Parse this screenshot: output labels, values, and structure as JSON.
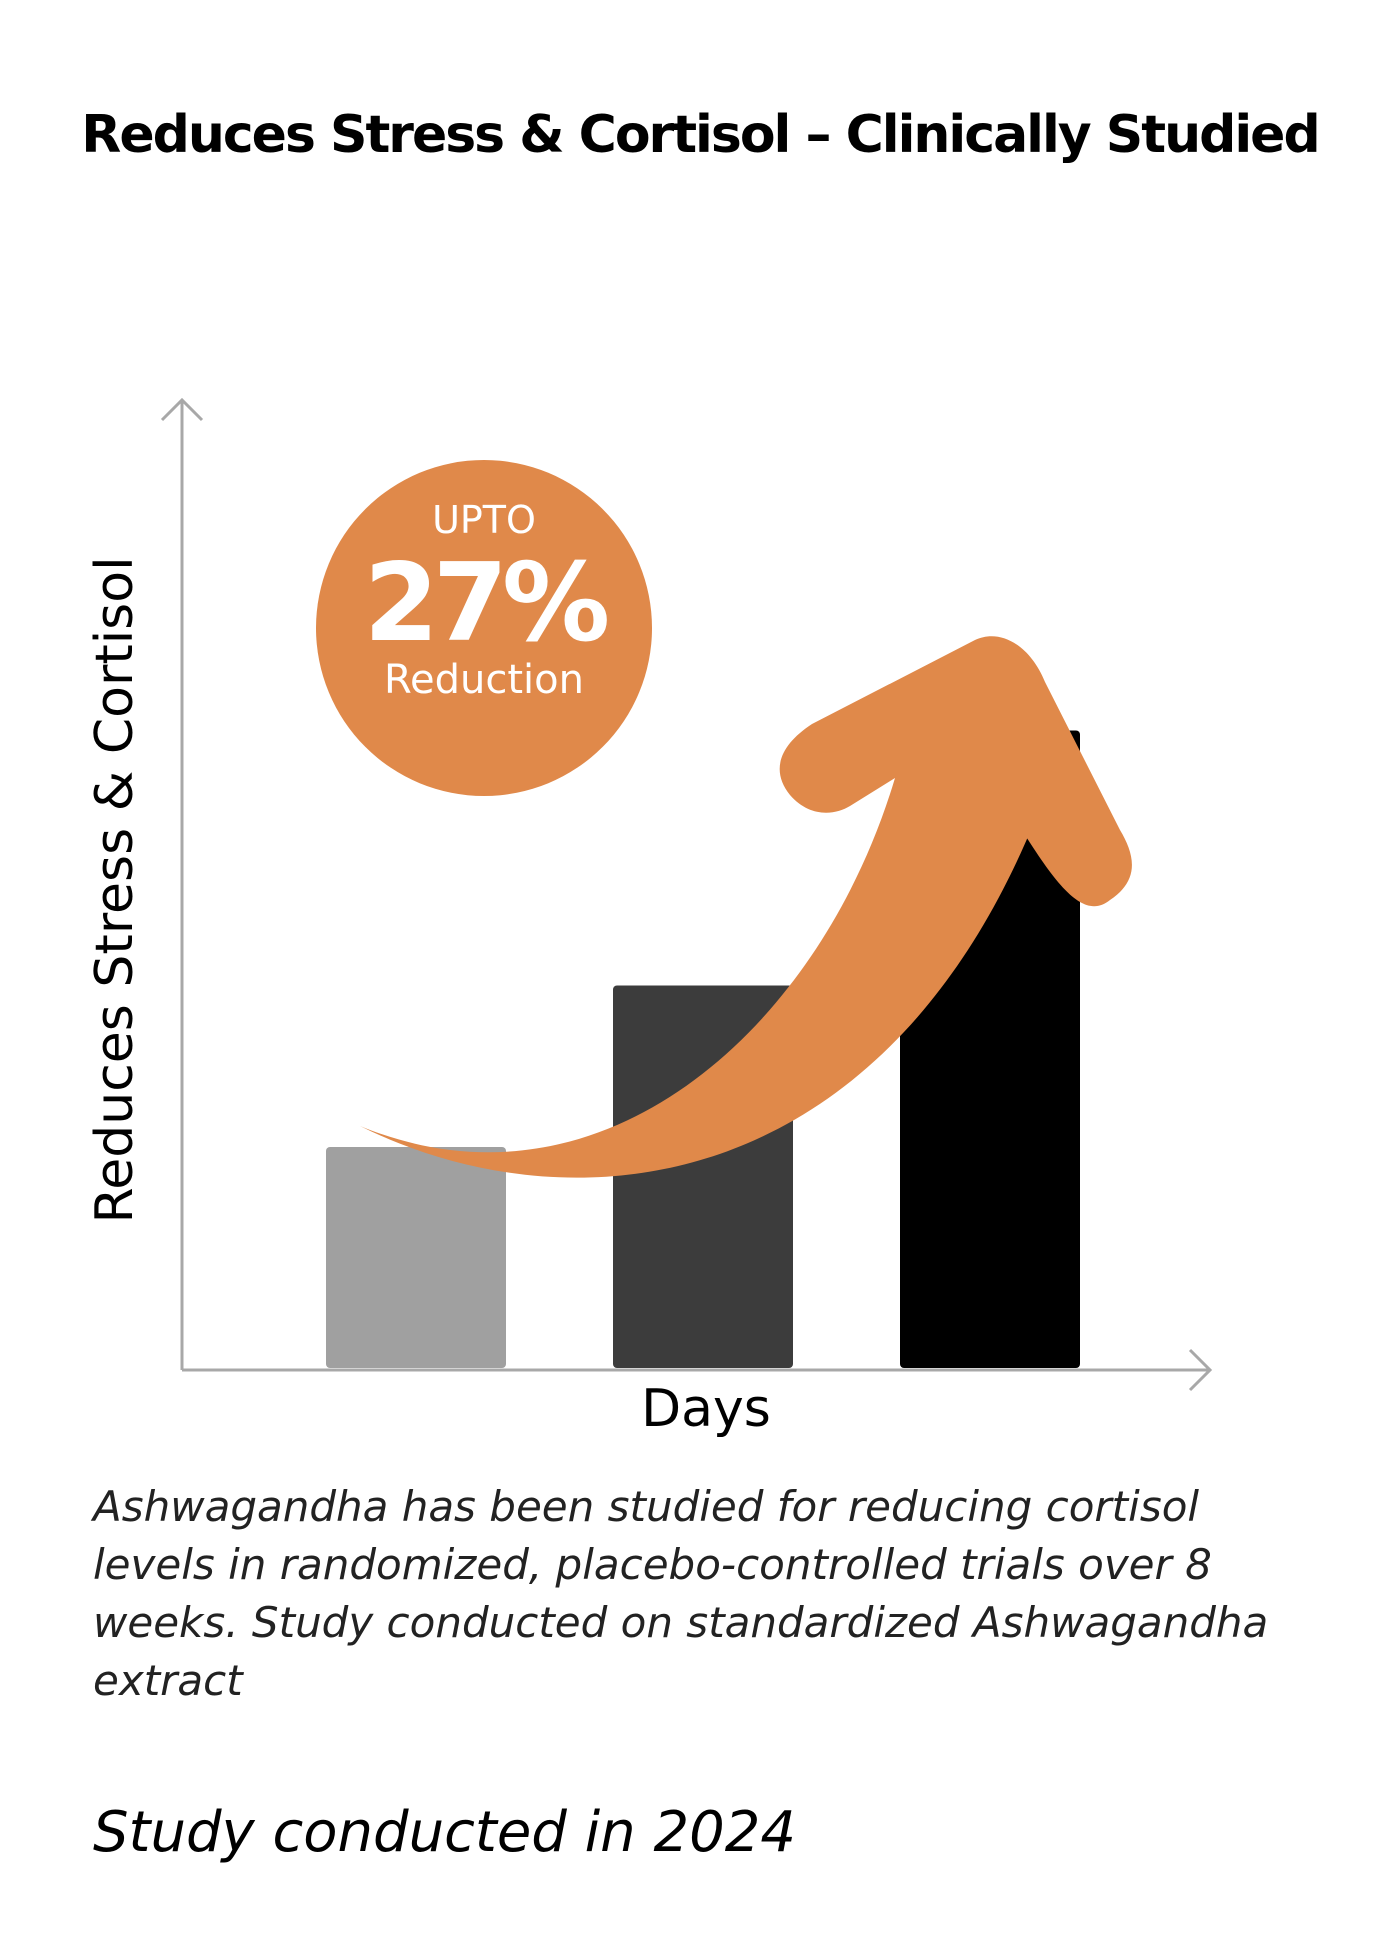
{
  "page": {
    "title": "Reduces Stress & Cortisol – Clinically Studied",
    "footnote": "Ashwagandha has been studied for reducing cortisol levels in randomized, placebo-controlled trials over 8 weeks. Study conducted on standardized Ashwagandha extract",
    "study_year": "Study conducted in 2024"
  },
  "badge": {
    "top": "UPTO",
    "value": "27%",
    "bottom": "Reduction",
    "color": "#e0894a"
  },
  "chart_data": {
    "type": "bar",
    "title": "Reduces Stress & Cortisol – Clinically Studied",
    "xlabel": "Days",
    "ylabel": "Reduces Stress & Cortisol",
    "categories": [
      "",
      "",
      ""
    ],
    "values": [
      26,
      45,
      75
    ],
    "ylim": [
      0,
      100
    ],
    "bar_colors": [
      "#a0a0a0",
      "#3c3c3c",
      "#000000"
    ],
    "axis_color": "#a8a8a8",
    "arrow_color": "#e0894a",
    "grid": false,
    "legend": "none",
    "annotations": [
      "UPTO 27% Reduction"
    ]
  }
}
